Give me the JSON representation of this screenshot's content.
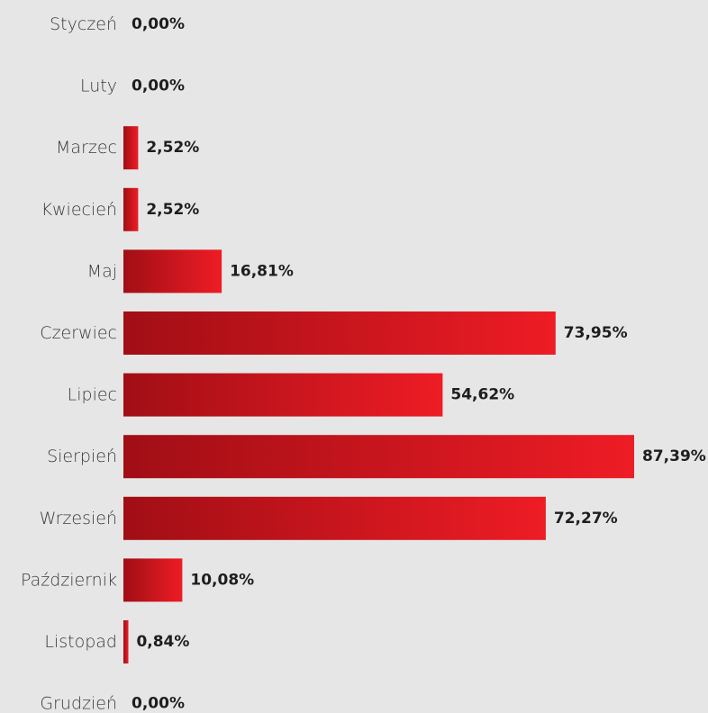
{
  "chart_data": {
    "type": "bar",
    "orientation": "horizontal",
    "categories": [
      "Styczeń",
      "Luty",
      "Marzec",
      "Kwiecień",
      "Maj",
      "Czerwiec",
      "Lipiec",
      "Sierpień",
      "Wrzesień",
      "Październik",
      "Listopad",
      "Grudzień"
    ],
    "values": [
      0,
      0,
      2.52,
      2.52,
      16.81,
      73.95,
      54.62,
      87.39,
      72.27,
      10.08,
      0.84,
      0
    ],
    "value_labels": [
      "0,00%",
      "0,00%",
      "2,52%",
      "2,52%",
      "16,81%",
      "73,95%",
      "54,62%",
      "87,39%",
      "72,27%",
      "10,08%",
      "0,84%",
      "0,00%"
    ],
    "title": "",
    "xlabel": "",
    "ylabel": "",
    "xlim": [
      0,
      87.39
    ],
    "grid": false,
    "legend": "none",
    "colors": {
      "bar_start": "#a10e15",
      "bar_end": "#ee1c25",
      "background": "#e6e6e6"
    }
  }
}
